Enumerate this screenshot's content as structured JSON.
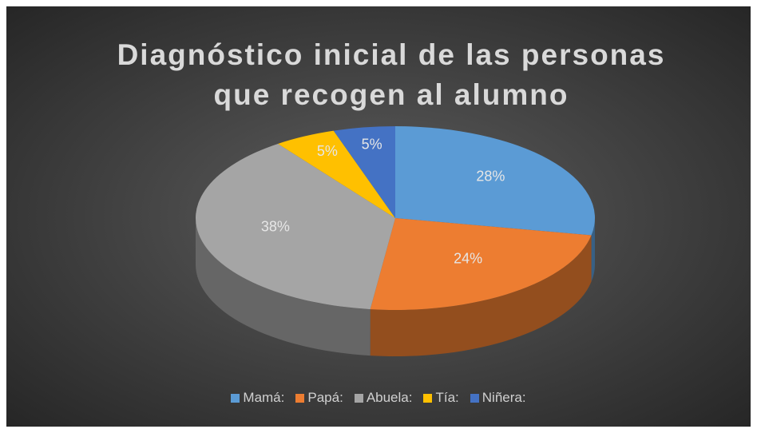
{
  "chart_data": {
    "type": "pie",
    "title": "Diagnóstico inicial de las personas que recogen al alumno",
    "categories": [
      "Mamá:",
      "Papá:",
      "Abuela:",
      "Tía:",
      "Niñera:"
    ],
    "values": [
      28,
      24,
      38,
      5,
      5
    ],
    "value_labels": [
      "28%",
      "24%",
      "38%",
      "5%",
      "5%"
    ],
    "colors": [
      "#5b9bd5",
      "#ed7d31",
      "#a5a5a5",
      "#ffc000",
      "#4472c4"
    ],
    "legend": "bottom"
  }
}
